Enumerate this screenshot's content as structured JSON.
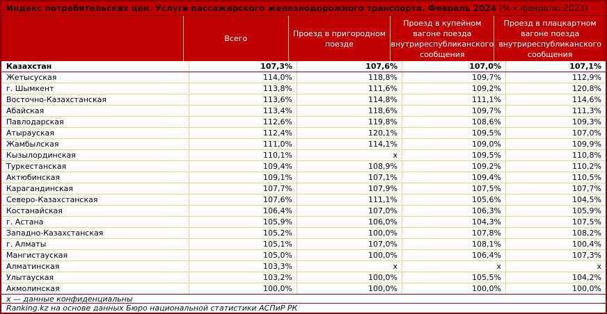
{
  "title": {
    "main": "Индекс потребительских цен. Услуги пассажирского железнодорожного транспорта. Февраль 2024",
    "suffix": "(% к февралю 2023)"
  },
  "footnote": "x — данные конфиденциальны",
  "source": "Ranking.kz на основе данных Бюро национальной статистики АСПиР РК",
  "colors": {
    "banner_red": "#c00000",
    "border_dark_red": "#8b0002",
    "border_tan": "#eccb9b",
    "title_text": "#1d0000",
    "header_text": "#ffffff",
    "body_text": "#000000"
  },
  "chart_data": {
    "type": "table",
    "title": "Индекс потребительских цен. Услуги пассажирского железнодорожного транспорта. Февраль 2024 (% к февралю 2023)",
    "columns": [
      "",
      "Всего",
      "Проезд в пригородном поезде",
      "Проезд в купейном вагоне поезда внутриреспубликанского сообщения",
      "Проезд в плацкартном вагоне поезда внутриреспубликанского сообщения"
    ],
    "confidential_marker": "x",
    "rows": [
      {
        "region": "Казахстан",
        "bold": true,
        "values": [
          "107,3%",
          "107,6%",
          "107,0%",
          "107,1%"
        ]
      },
      {
        "region": "Жетысуская",
        "bold": false,
        "values": [
          "114,0%",
          "118,8%",
          "109,7%",
          "112,9%"
        ]
      },
      {
        "region": "г. Шымкент",
        "bold": false,
        "values": [
          "113,8%",
          "111,6%",
          "109,2%",
          "120,8%"
        ]
      },
      {
        "region": "Восточно-Казахстанская",
        "bold": false,
        "values": [
          "113,6%",
          "114,8%",
          "111,1%",
          "114,6%"
        ]
      },
      {
        "region": "Абайская",
        "bold": false,
        "values": [
          "113,4%",
          "118,6%",
          "109,7%",
          "111,3%"
        ]
      },
      {
        "region": "Павлодарская",
        "bold": false,
        "values": [
          "112,6%",
          "119,8%",
          "108,6%",
          "109,3%"
        ]
      },
      {
        "region": "Атырауская",
        "bold": false,
        "values": [
          "112,4%",
          "120,1%",
          "109,5%",
          "107,0%"
        ]
      },
      {
        "region": "Жамбылская",
        "bold": false,
        "values": [
          "111,0%",
          "114,1%",
          "109,0%",
          "109,9%"
        ]
      },
      {
        "region": "Кызылординская",
        "bold": false,
        "values": [
          "110,1%",
          "x",
          "109,5%",
          "110,8%"
        ]
      },
      {
        "region": "Туркестанская",
        "bold": false,
        "values": [
          "109,4%",
          "108,9%",
          "109,2%",
          "110,2%"
        ]
      },
      {
        "region": "Актюбинская",
        "bold": false,
        "values": [
          "109,1%",
          "107,1%",
          "109,4%",
          "110,5%"
        ]
      },
      {
        "region": "Карагандинская",
        "bold": false,
        "values": [
          "107,7%",
          "107,9%",
          "107,5%",
          "107,7%"
        ]
      },
      {
        "region": "Северо-Казахстанская",
        "bold": false,
        "values": [
          "107,6%",
          "111,1%",
          "105,6%",
          "104,5%"
        ]
      },
      {
        "region": "Костанайская",
        "bold": false,
        "values": [
          "106,4%",
          "107,0%",
          "106,3%",
          "105,9%"
        ]
      },
      {
        "region": "г. Астана",
        "bold": false,
        "values": [
          "105,9%",
          "106,0%",
          "104,3%",
          "107,5%"
        ]
      },
      {
        "region": "Западно-Казахстанская",
        "bold": false,
        "values": [
          "105,2%",
          "100,0%",
          "107,8%",
          "108,2%"
        ]
      },
      {
        "region": "г. Алматы",
        "bold": false,
        "values": [
          "105,1%",
          "107,0%",
          "108,1%",
          "100,4%"
        ]
      },
      {
        "region": "Мангистауская",
        "bold": false,
        "values": [
          "105,0%",
          "100,0%",
          "106,4%",
          "107,3%"
        ]
      },
      {
        "region": "Алматинская",
        "bold": false,
        "values": [
          "103,3%",
          "x",
          "x",
          "x"
        ]
      },
      {
        "region": "Улытауская",
        "bold": false,
        "values": [
          "103,2%",
          "100,0%",
          "105,5%",
          "104,2%"
        ]
      },
      {
        "region": "Акмолинская",
        "bold": false,
        "values": [
          "100,0%",
          "100,0%",
          "100,0%",
          "100,0%"
        ]
      }
    ]
  }
}
